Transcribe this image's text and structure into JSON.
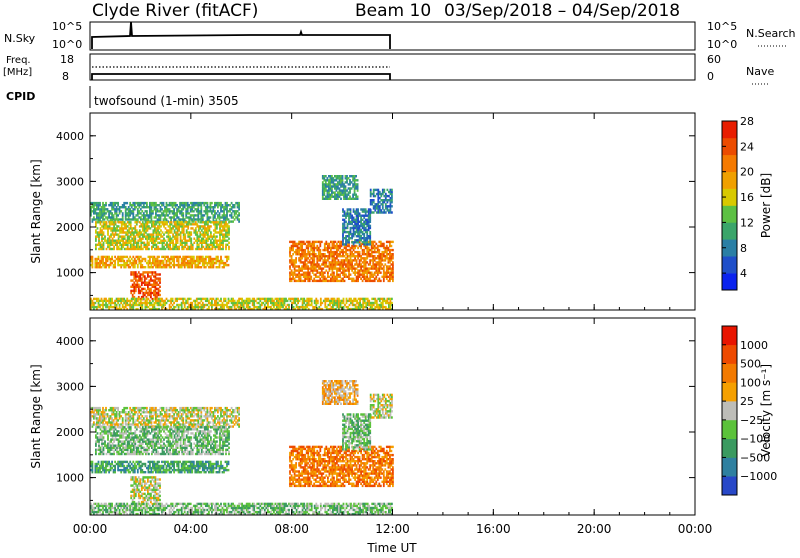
{
  "header": {
    "station": "Clyde River (fitACF)",
    "beam": "Beam 10",
    "date_range": "03/Sep/2018 – 04/Sep/2018"
  },
  "top_panels": {
    "nsky_label": "N.Sky",
    "nsky_ticks": [
      "10^5",
      "10^0"
    ],
    "nsearch_label": "N.Search",
    "nsearch_ticks": [
      "10^5",
      "10^0"
    ],
    "freq_label_line1": "Freq.",
    "freq_label_line2": "[MHz]",
    "freq_ticks": [
      "18",
      "8"
    ],
    "nave_label": "Nave",
    "nave_ticks": [
      "60",
      "0"
    ],
    "cpid_label": "CPID",
    "cpid_text": "twofsound (1-min) 3505"
  },
  "chart_data": [
    {
      "type": "heatmap",
      "title": "",
      "xlabel": "Time UT",
      "ylabel": "Slant Range [km]",
      "x_ticks": [
        "00:00",
        "04:00",
        "08:00",
        "12:00",
        "16:00",
        "20:00",
        "00:00"
      ],
      "x_range_hours": [
        0,
        24
      ],
      "data_extent_hours": [
        0,
        12
      ],
      "ylim": [
        180,
        4500
      ],
      "y_ticks": [
        1000,
        2000,
        3000,
        4000
      ],
      "colorbar": {
        "label": "Power [dB]",
        "ticks": [
          "4",
          "8",
          "12",
          "16",
          "20",
          "24",
          "28"
        ],
        "colors": [
          "#0a22ee",
          "#1f4fc9",
          "#2a7fa5",
          "#3aa56a",
          "#5cc043",
          "#d8c900",
          "#f0a000",
          "#f57a00",
          "#ec4c00",
          "#e81d00"
        ]
      },
      "echo_regions": [
        {
          "t_start": 0.0,
          "t_end": 5.9,
          "range_km": [
            2100,
            2550
          ],
          "level": 3
        },
        {
          "t_start": 0.0,
          "t_end": 5.5,
          "range_km": [
            1100,
            1350
          ],
          "level": 6
        },
        {
          "t_start": 0.2,
          "t_end": 5.5,
          "range_km": [
            1500,
            2100
          ],
          "level": 5
        },
        {
          "t_start": 1.6,
          "t_end": 2.8,
          "range_km": [
            400,
            1000
          ],
          "level": 8
        },
        {
          "t_start": 7.9,
          "t_end": 12.0,
          "range_km": [
            800,
            1700
          ],
          "level": 7
        },
        {
          "t_start": 10.0,
          "t_end": 11.1,
          "range_km": [
            1600,
            2400
          ],
          "level": 2
        },
        {
          "t_start": 11.1,
          "t_end": 12.0,
          "range_km": [
            2300,
            2800
          ],
          "level": 2
        },
        {
          "t_start": 9.2,
          "t_end": 10.6,
          "range_km": [
            2600,
            3100
          ],
          "level": 3
        },
        {
          "t_start": 0.0,
          "t_end": 12.0,
          "range_km": [
            180,
            420
          ],
          "level": 5
        }
      ]
    },
    {
      "type": "heatmap",
      "title": "",
      "xlabel": "Time UT",
      "ylabel": "Slant Range [km]",
      "x_ticks": [
        "00:00",
        "04:00",
        "08:00",
        "12:00",
        "16:00",
        "20:00",
        "00:00"
      ],
      "x_range_hours": [
        0,
        24
      ],
      "data_extent_hours": [
        0,
        12
      ],
      "ylim": [
        180,
        4500
      ],
      "y_ticks": [
        1000,
        2000,
        3000,
        4000
      ],
      "colorbar": {
        "label": "Velocity [m s⁻¹]",
        "ticks": [
          "1000",
          "500",
          "100",
          "25",
          "−25",
          "−100",
          "−500",
          "−1000"
        ],
        "colors": [
          "#2848c8",
          "#2f80a0",
          "#3a9a60",
          "#5bc23a",
          "#bdbdb8",
          "#f5a000",
          "#f37a00",
          "#ee4a00",
          "#e81500"
        ]
      },
      "echo_regions": [
        {
          "t_start": 0.0,
          "t_end": 5.9,
          "range_km": [
            2100,
            2550
          ],
          "level": 4
        },
        {
          "t_start": 0.0,
          "t_end": 5.5,
          "range_km": [
            1100,
            1350
          ],
          "level": 2
        },
        {
          "t_start": 0.2,
          "t_end": 5.5,
          "range_km": [
            1500,
            2100
          ],
          "level": 3
        },
        {
          "t_start": 1.6,
          "t_end": 2.8,
          "range_km": [
            400,
            1000
          ],
          "level": 4
        },
        {
          "t_start": 7.9,
          "t_end": 12.0,
          "range_km": [
            800,
            1700
          ],
          "level": 6
        },
        {
          "t_start": 10.0,
          "t_end": 11.1,
          "range_km": [
            1600,
            2400
          ],
          "level": 3
        },
        {
          "t_start": 11.1,
          "t_end": 12.0,
          "range_km": [
            2300,
            2800
          ],
          "level": 4
        },
        {
          "t_start": 9.2,
          "t_end": 10.6,
          "range_km": [
            2600,
            3100
          ],
          "level": 5
        },
        {
          "t_start": 0.0,
          "t_end": 12.0,
          "range_km": [
            180,
            420
          ],
          "level": 3
        }
      ]
    }
  ]
}
